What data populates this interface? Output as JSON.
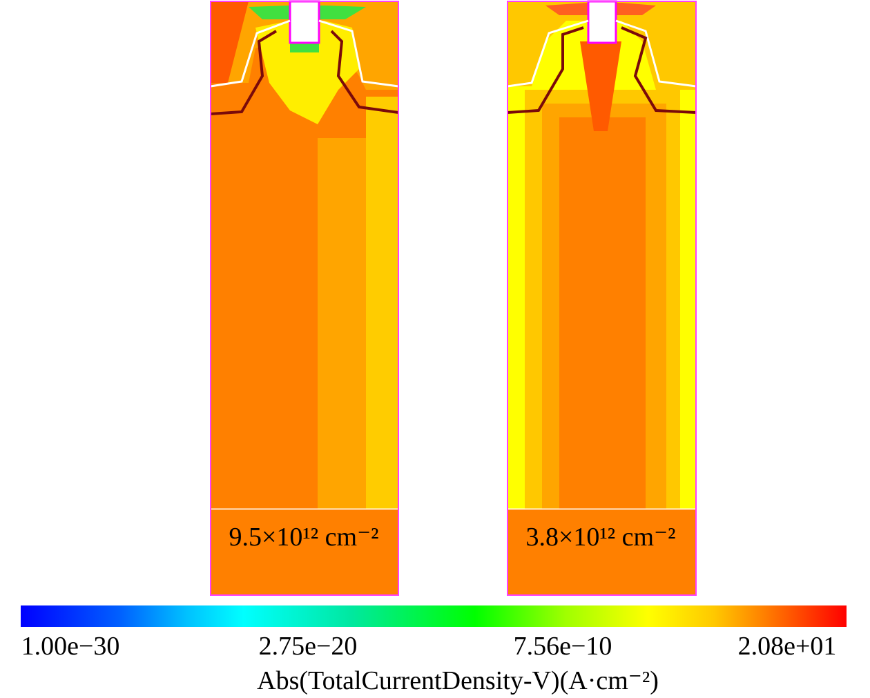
{
  "panels": [
    {
      "label": "9.5×10¹² cm⁻²"
    },
    {
      "label": "3.8×10¹² cm⁻²"
    }
  ],
  "colorbar": {
    "ticks": [
      "1.00e−30",
      "2.75e−20",
      "7.56e−10",
      "2.08e+01"
    ],
    "label": "Abs(TotalCurrentDensity-V)(A·cm⁻²)"
  }
}
